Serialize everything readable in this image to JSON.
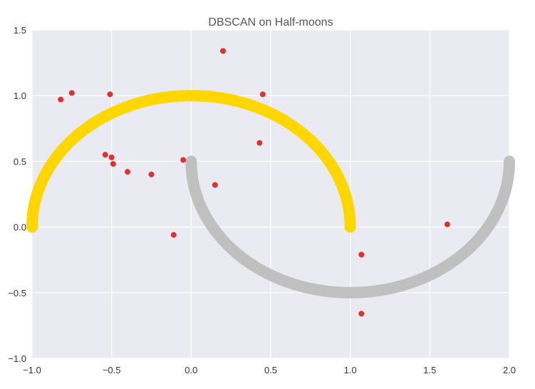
{
  "chart_data": {
    "type": "scatter",
    "title": "DBSCAN on Half-moons",
    "xlabel": "",
    "ylabel": "",
    "xlim": [
      -1.0,
      2.0
    ],
    "ylim": [
      -1.0,
      1.5
    ],
    "x_ticks": [
      -1.0,
      -0.5,
      0.0,
      0.5,
      1.0,
      1.5,
      2.0
    ],
    "x_tick_labels": [
      "−1.0",
      "−0.5",
      "0.0",
      "0.5",
      "1.0",
      "1.5",
      "2.0"
    ],
    "y_ticks": [
      -1.0,
      -0.5,
      0.0,
      0.5,
      1.0,
      1.5
    ],
    "y_tick_labels": [
      "−1.0",
      "−0.5",
      "0.0",
      "0.5",
      "1.0",
      "1.5"
    ],
    "grid": true,
    "legend": "none",
    "background_color": "#eaeaf2",
    "grid_color": "#ffffff",
    "series": [
      {
        "color": "#ffd700",
        "shape": "upper half-moon arc",
        "center": [
          0.0,
          0.0
        ],
        "radius": 1.0,
        "theta_start_deg": 0,
        "theta_end_deg": 180,
        "points": [
          {
            "x": 1.0,
            "y": 0.0
          },
          {
            "x": 0.966,
            "y": 0.259
          },
          {
            "x": 0.866,
            "y": 0.5
          },
          {
            "x": 0.707,
            "y": 0.707
          },
          {
            "x": 0.5,
            "y": 0.866
          },
          {
            "x": 0.259,
            "y": 0.966
          },
          {
            "x": 0.0,
            "y": 1.0
          },
          {
            "x": -0.259,
            "y": 0.966
          },
          {
            "x": -0.5,
            "y": 0.866
          },
          {
            "x": -0.707,
            "y": 0.707
          },
          {
            "x": -0.866,
            "y": 0.5
          },
          {
            "x": -0.966,
            "y": 0.259
          },
          {
            "x": -1.0,
            "y": 0.0
          }
        ]
      },
      {
        "color": "#c0c0c0",
        "shape": "lower half-moon arc",
        "center": [
          1.0,
          0.5
        ],
        "radius": 1.0,
        "theta_start_deg": 180,
        "theta_end_deg": 360,
        "points": [
          {
            "x": 0.0,
            "y": 0.5
          },
          {
            "x": 0.034,
            "y": 0.241
          },
          {
            "x": 0.134,
            "y": 0.0
          },
          {
            "x": 0.293,
            "y": -0.207
          },
          {
            "x": 0.5,
            "y": -0.366
          },
          {
            "x": 0.741,
            "y": -0.466
          },
          {
            "x": 1.0,
            "y": -0.5
          },
          {
            "x": 1.259,
            "y": -0.466
          },
          {
            "x": 1.5,
            "y": -0.366
          },
          {
            "x": 1.707,
            "y": -0.207
          },
          {
            "x": 1.866,
            "y": 0.0
          },
          {
            "x": 1.966,
            "y": 0.241
          },
          {
            "x": 2.0,
            "y": 0.5
          }
        ]
      },
      {
        "color": "#e03030",
        "shape": "noise points",
        "points": [
          {
            "x": -0.82,
            "y": 0.97
          },
          {
            "x": -0.75,
            "y": 1.02
          },
          {
            "x": -0.51,
            "y": 1.01
          },
          {
            "x": -0.54,
            "y": 0.55
          },
          {
            "x": -0.5,
            "y": 0.53
          },
          {
            "x": -0.49,
            "y": 0.48
          },
          {
            "x": -0.4,
            "y": 0.42
          },
          {
            "x": -0.25,
            "y": 0.4
          },
          {
            "x": -0.05,
            "y": 0.51
          },
          {
            "x": -0.11,
            "y": -0.06
          },
          {
            "x": 0.15,
            "y": 0.32
          },
          {
            "x": 0.2,
            "y": 1.34
          },
          {
            "x": 0.43,
            "y": 0.64
          },
          {
            "x": 0.45,
            "y": 1.01
          },
          {
            "x": 1.07,
            "y": -0.21
          },
          {
            "x": 1.07,
            "y": -0.66
          },
          {
            "x": 1.61,
            "y": 0.02
          }
        ]
      }
    ]
  }
}
